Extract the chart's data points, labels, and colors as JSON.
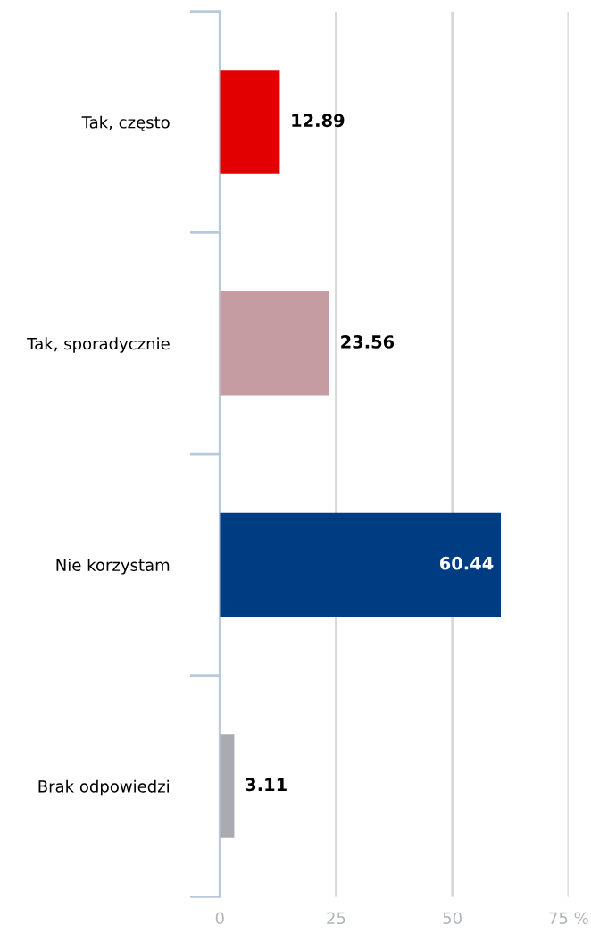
{
  "chart_data": {
    "type": "bar",
    "orientation": "horizontal",
    "categories": [
      "Tak, często",
      "Tak, sporadycznie",
      "Nie korzystam",
      "Brak odpowiedzi"
    ],
    "values": [
      12.89,
      23.56,
      60.44,
      3.11
    ],
    "colors": [
      "#e30000",
      "#c49ca2",
      "#003c82",
      "#a9abb0"
    ],
    "xlim": [
      0,
      75
    ],
    "xticks": [
      0,
      25,
      50,
      {
        "value": 75,
        "label": "75 %"
      }
    ],
    "grid": "x",
    "data_labels": true
  }
}
